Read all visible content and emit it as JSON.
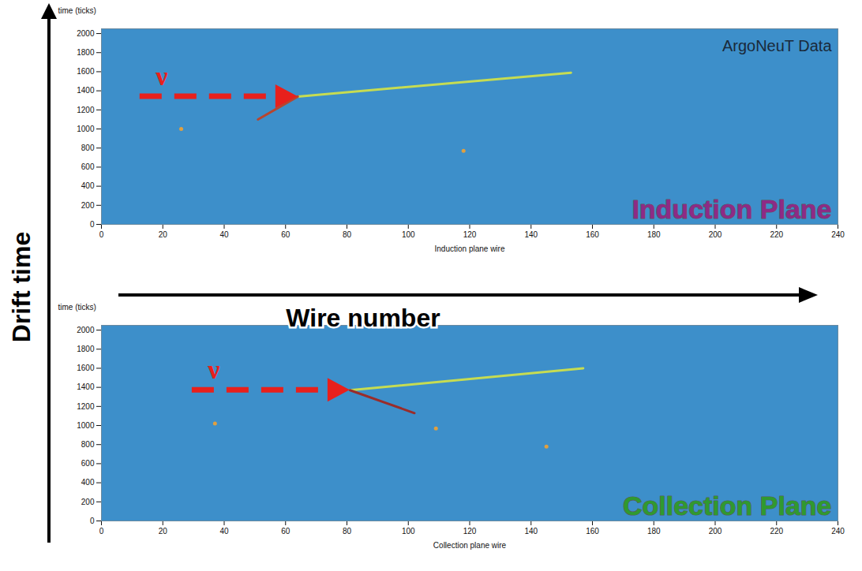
{
  "chart_data": [
    {
      "type": "line",
      "title": "Induction Plane",
      "annotations": [
        "ArgoNeuT Data",
        "ν"
      ],
      "xlabel": "Induction plane wire",
      "ylabel": "time (ticks)",
      "xlim": [
        0,
        240
      ],
      "xticks": [
        0,
        20,
        40,
        60,
        80,
        100,
        120,
        140,
        160,
        180,
        200,
        220,
        240
      ],
      "ylim": [
        0,
        2050
      ],
      "yticks": [
        0,
        200,
        400,
        600,
        800,
        1000,
        1200,
        1400,
        1600,
        1800,
        2000
      ],
      "grid": false,
      "series": [
        {
          "type": "line",
          "color": "#c6dc52",
          "x": [
            64,
            153
          ],
          "values": [
            1340,
            1590
          ]
        },
        {
          "type": "line",
          "color": "#b8452e",
          "x": [
            64,
            51
          ],
          "values": [
            1340,
            1100
          ]
        },
        {
          "type": "scatter",
          "color": "#e0a040",
          "x": [
            26,
            118
          ],
          "values": [
            1000,
            770
          ]
        }
      ]
    },
    {
      "type": "line",
      "title": "Collection Plane",
      "annotations": [
        "ν"
      ],
      "xlabel": "Collection plane wire",
      "ylabel": "time (ticks)",
      "xlim": [
        0,
        240
      ],
      "xticks": [
        0,
        20,
        40,
        60,
        80,
        100,
        120,
        140,
        160,
        180,
        200,
        220,
        240
      ],
      "ylim": [
        0,
        2050
      ],
      "yticks": [
        0,
        200,
        400,
        600,
        800,
        1000,
        1200,
        1400,
        1600,
        1800,
        2000
      ],
      "grid": false,
      "series": [
        {
          "type": "line",
          "color": "#c6dc52",
          "x": [
            81,
            157
          ],
          "values": [
            1370,
            1600
          ]
        },
        {
          "type": "line",
          "color": "#9a2c2a",
          "x": [
            81,
            102
          ],
          "values": [
            1370,
            1130
          ]
        },
        {
          "type": "scatter",
          "color": "#e0a040",
          "x": [
            37,
            109,
            145
          ],
          "values": [
            1020,
            970,
            780
          ]
        }
      ]
    }
  ],
  "labels": {
    "vertical": "Drift time",
    "horizontal": "Wire number"
  }
}
